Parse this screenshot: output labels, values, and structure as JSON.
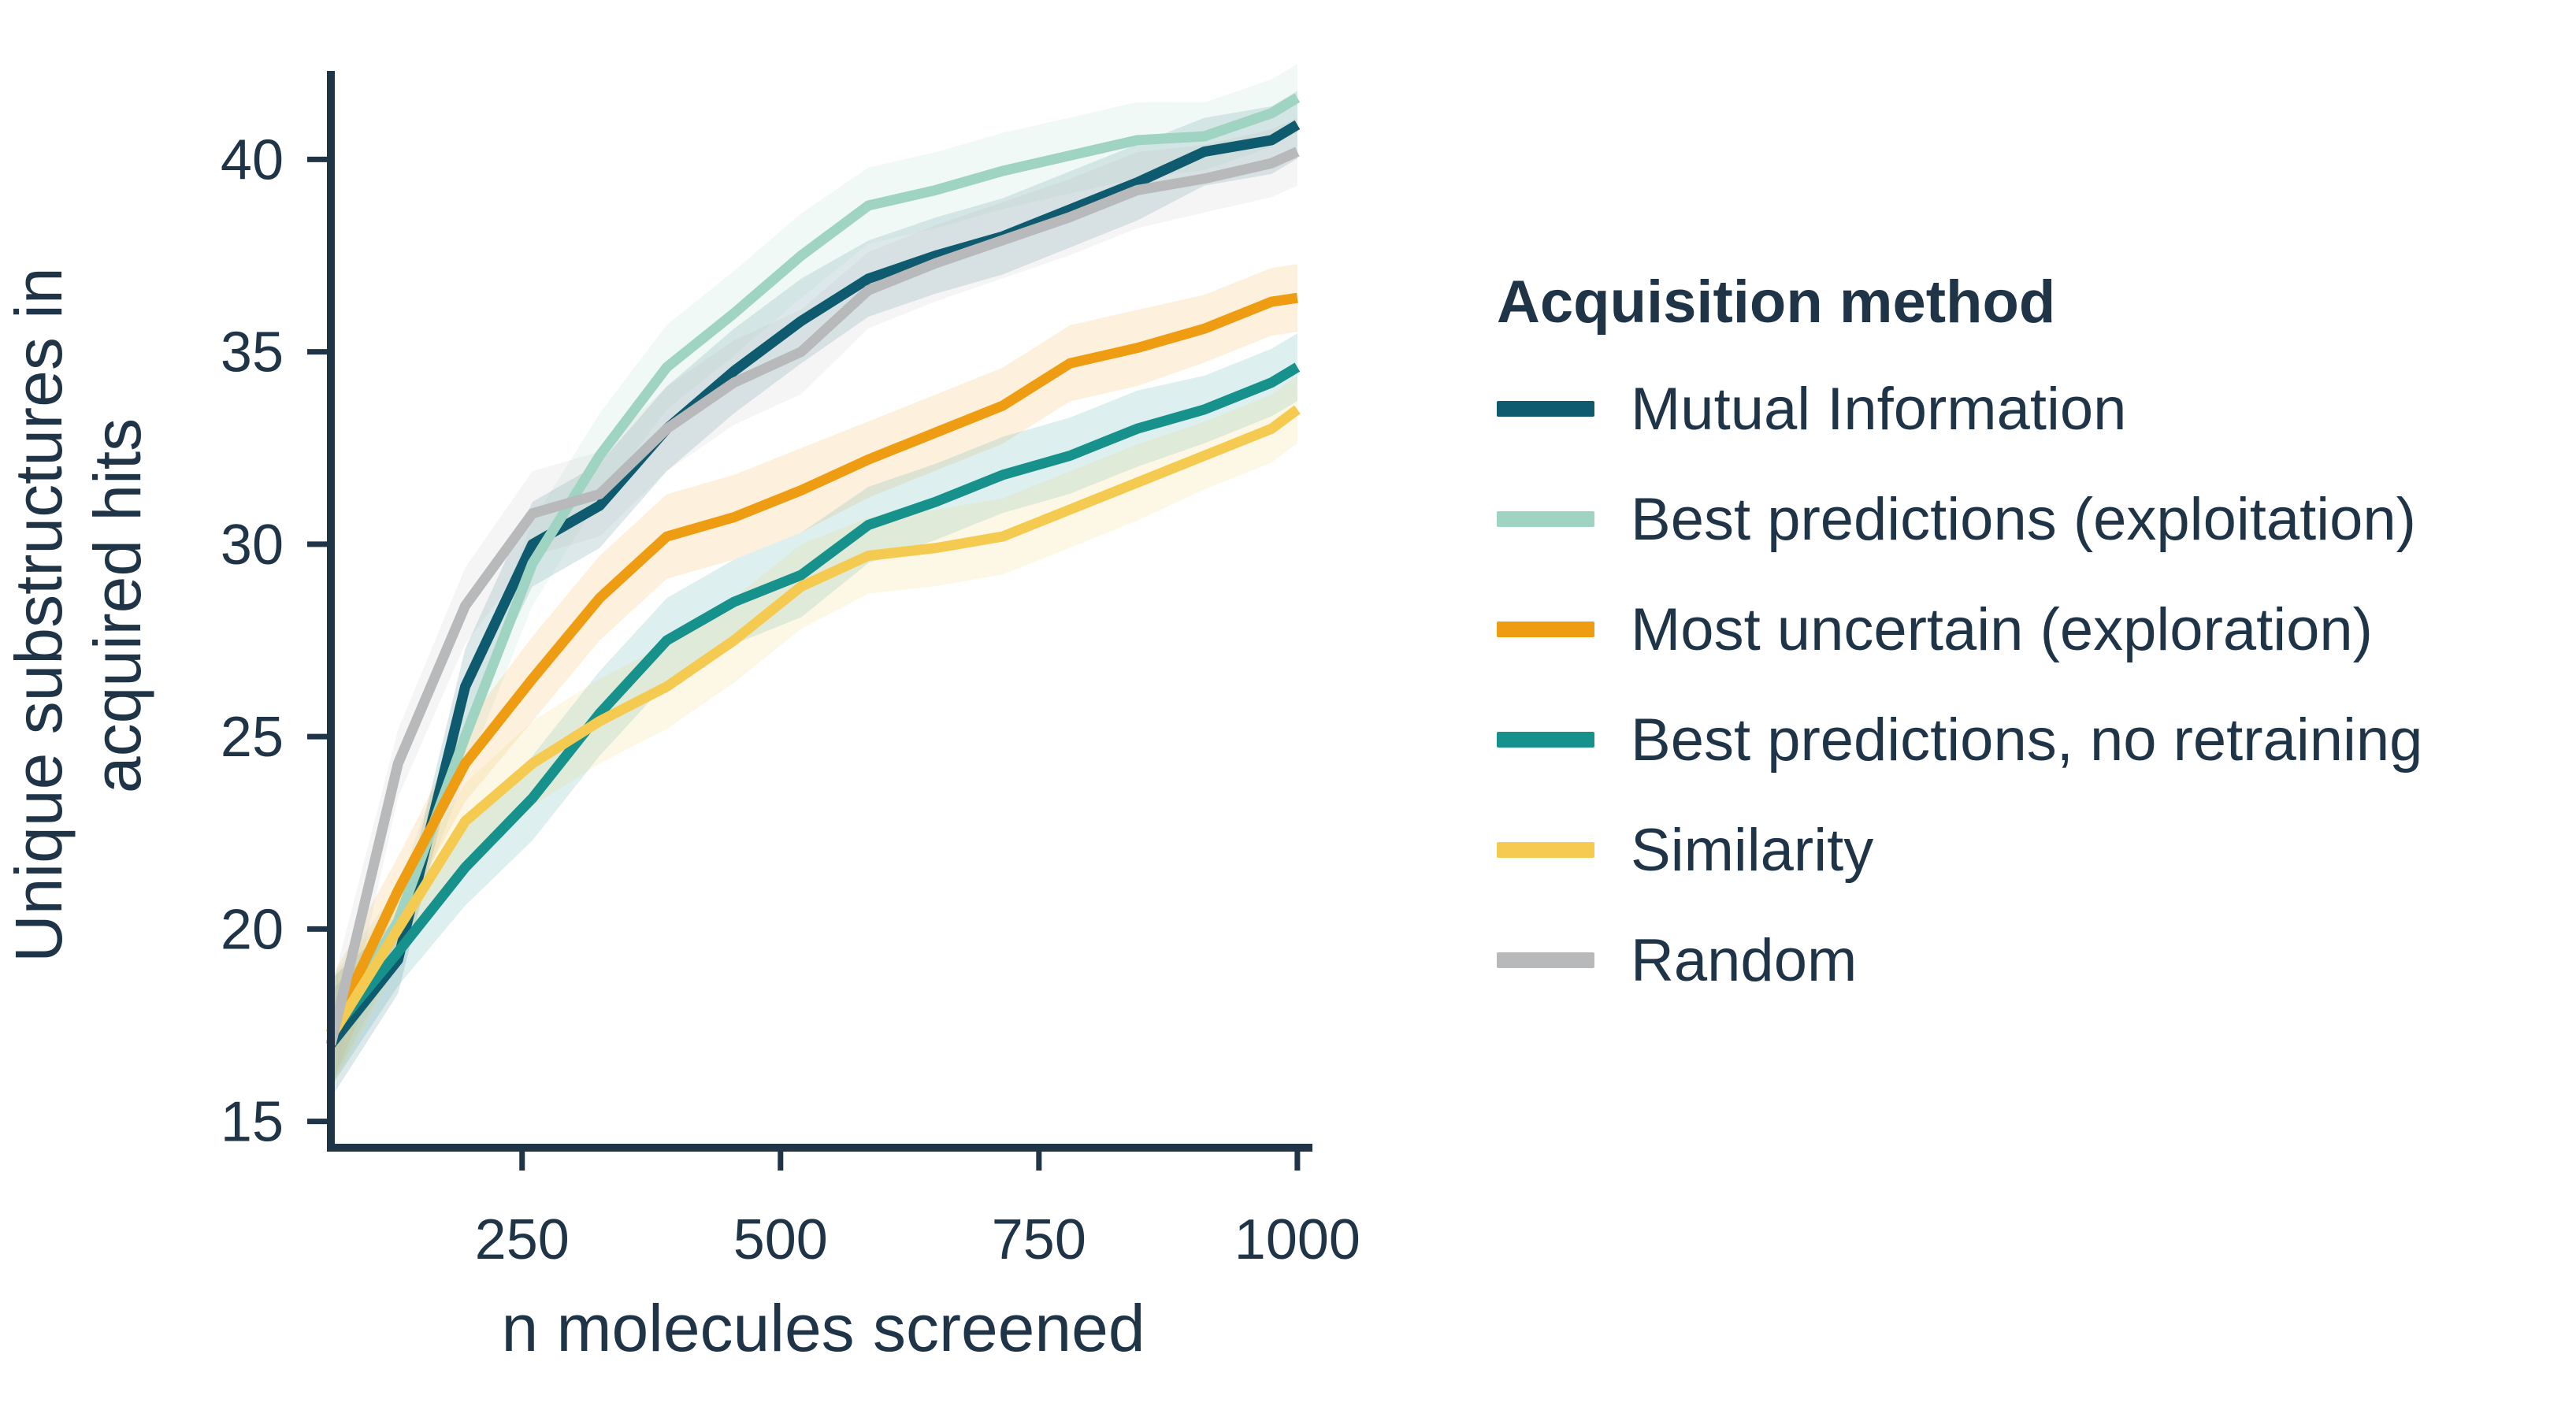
{
  "chart_data": {
    "type": "line",
    "xlabel": "n molecules screened",
    "ylabel_lines": [
      "Unique substructures in",
      "acquired hits"
    ],
    "xlim": [
      65,
      1010
    ],
    "ylim": [
      14.5,
      42.3
    ],
    "xticks": [
      250,
      500,
      750,
      1000
    ],
    "yticks": [
      15,
      20,
      25,
      30,
      35,
      40
    ],
    "x": [
      65,
      130,
      195,
      260,
      325,
      390,
      455,
      520,
      585,
      650,
      715,
      780,
      845,
      910,
      975,
      1000
    ],
    "legend_title": "Acquisition method",
    "legend_position": "right",
    "grid": false,
    "series": [
      {
        "name": "Mutual Information",
        "color": "#0e5a6e",
        "values": [
          17.0,
          19.2,
          26.3,
          30.0,
          31.0,
          33.0,
          34.5,
          35.8,
          36.9,
          37.5,
          38.0,
          38.7,
          39.4,
          40.2,
          40.5,
          40.9
        ]
      },
      {
        "name": "Best predictions (exploitation)",
        "color": "#9ed4c1",
        "values": [
          17.3,
          20.2,
          25.0,
          29.5,
          32.3,
          34.6,
          36.0,
          37.5,
          38.8,
          39.2,
          39.7,
          40.1,
          40.5,
          40.6,
          41.2,
          41.6
        ]
      },
      {
        "name": "Most uncertain (exploration)",
        "color": "#ee9d12",
        "values": [
          17.3,
          21.0,
          24.3,
          26.5,
          28.6,
          30.2,
          30.7,
          31.4,
          32.2,
          32.9,
          33.6,
          34.7,
          35.1,
          35.6,
          36.3,
          36.4
        ]
      },
      {
        "name": "Best predictions, no retraining",
        "color": "#17918c",
        "values": [
          17.3,
          19.4,
          21.6,
          23.4,
          25.6,
          27.5,
          28.5,
          29.2,
          30.5,
          31.1,
          31.8,
          32.3,
          33.0,
          33.5,
          34.2,
          34.6
        ]
      },
      {
        "name": "Similarity",
        "color": "#f4cb50",
        "values": [
          17.2,
          20.0,
          22.8,
          24.3,
          25.4,
          26.3,
          27.5,
          28.9,
          29.7,
          29.9,
          30.2,
          30.9,
          31.6,
          32.3,
          33.0,
          33.5
        ]
      },
      {
        "name": "Random",
        "color": "#b8b9bb",
        "values": [
          17.0,
          24.3,
          28.4,
          30.8,
          31.3,
          33.0,
          34.2,
          35.0,
          36.6,
          37.3,
          37.9,
          38.5,
          39.2,
          39.5,
          39.9,
          40.2
        ]
      }
    ]
  }
}
